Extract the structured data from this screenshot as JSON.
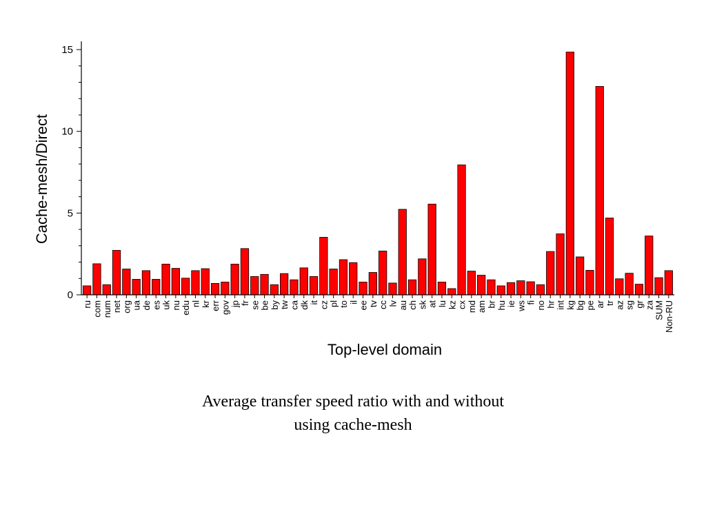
{
  "caption": {
    "line1": "Average transfer speed ratio with and without",
    "line2": "using cache-mesh"
  },
  "chart_data": {
    "type": "bar",
    "title": "",
    "xlabel": "Top-level domain",
    "ylabel": "Cache-mesh/Direct",
    "ylim": [
      0,
      15.5
    ],
    "yticks": [
      0,
      5,
      10,
      15
    ],
    "ytick_labels": [
      "0",
      "5",
      "10",
      "15"
    ],
    "grid": false,
    "bar_color": "#ff0000",
    "categories": [
      "ru",
      "com",
      "num",
      "net",
      "org",
      "ua",
      "de",
      "es",
      "uk",
      "nu",
      "edu",
      "nl",
      "kr",
      "err",
      "gov",
      "jp",
      "fr",
      "se",
      "be",
      "by",
      "tw",
      "ca",
      "dk",
      "it",
      "cz",
      "pl",
      "to",
      "il",
      "ee",
      "tv",
      "cc",
      "lv",
      "au",
      "ch",
      "sk",
      "at",
      "lu",
      "kz",
      "cx",
      "md",
      "am",
      "br",
      "hu",
      "ie",
      "ws",
      "fi",
      "no",
      "hr",
      "int",
      "kg",
      "bg",
      "pe",
      "ar",
      "tr",
      "az",
      "sg",
      "gr",
      "za",
      "SUM",
      "Non-RU"
    ],
    "values": [
      0.55,
      1.9,
      0.62,
      2.72,
      1.58,
      0.95,
      1.48,
      0.95,
      1.88,
      1.62,
      1.02,
      1.48,
      1.6,
      0.7,
      0.78,
      1.88,
      2.83,
      1.12,
      1.25,
      0.62,
      1.3,
      0.92,
      1.65,
      1.12,
      3.52,
      1.58,
      2.15,
      1.97,
      0.78,
      1.37,
      2.68,
      0.72,
      5.23,
      0.92,
      2.2,
      5.55,
      0.78,
      0.38,
      7.95,
      1.45,
      1.2,
      0.92,
      0.55,
      0.75,
      0.86,
      0.8,
      0.62,
      2.65,
      3.73,
      14.85,
      2.32,
      1.5,
      12.75,
      4.7,
      0.98,
      1.32,
      0.65,
      3.6,
      1.05,
      1.48
    ]
  }
}
